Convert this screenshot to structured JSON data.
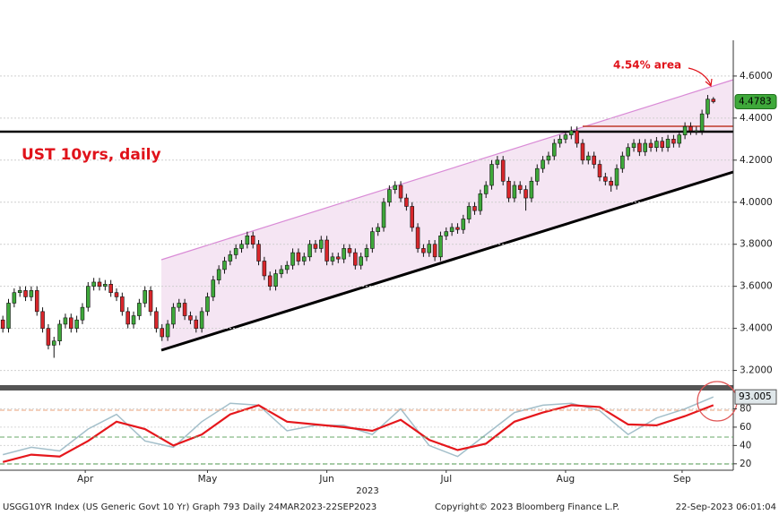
{
  "chart_data": [
    {
      "type": "candlestick",
      "title": "UST 10yrs, daily",
      "annotation": "4.54% area",
      "open": [
        3.44,
        3.4,
        3.52,
        3.57,
        3.58,
        3.55,
        3.58,
        3.48,
        3.4,
        3.32,
        3.34,
        3.42,
        3.45,
        3.4,
        3.44,
        3.5,
        3.6,
        3.62,
        3.6,
        3.61,
        3.57,
        3.55,
        3.48,
        3.42,
        3.46,
        3.52,
        3.58,
        3.48,
        3.4,
        3.36,
        3.42,
        3.5,
        3.52,
        3.46,
        3.44,
        3.4,
        3.48,
        3.55,
        3.63,
        3.68,
        3.72,
        3.75,
        3.78,
        3.8,
        3.84,
        3.8,
        3.72,
        3.65,
        3.6,
        3.66,
        3.68,
        3.7,
        3.76,
        3.72,
        3.74,
        3.8,
        3.78,
        3.82,
        3.72,
        3.74,
        3.73,
        3.78,
        3.76,
        3.7,
        3.74,
        3.78,
        3.86,
        3.88,
        4.0,
        4.06,
        4.08,
        4.02,
        3.98,
        3.88,
        3.78,
        3.76,
        3.8,
        3.74,
        3.84,
        3.86,
        3.88,
        3.87,
        3.92,
        3.98,
        3.96,
        4.04,
        4.08,
        4.18,
        4.2,
        4.1,
        4.02,
        4.08,
        4.06,
        4.02,
        4.1,
        4.16,
        4.2,
        4.22,
        4.28,
        4.3,
        4.32,
        4.34,
        4.28,
        4.2,
        4.22,
        4.18,
        4.12,
        4.1,
        4.08,
        4.16,
        4.22,
        4.26,
        4.28,
        4.24,
        4.28,
        4.26,
        4.29,
        4.26,
        4.3,
        4.28,
        4.32,
        4.36,
        4.34,
        4.34,
        4.42,
        4.49
      ],
      "high": [
        3.46,
        3.54,
        3.59,
        3.6,
        3.6,
        3.6,
        3.6,
        3.5,
        3.42,
        3.36,
        3.44,
        3.47,
        3.47,
        3.46,
        3.52,
        3.62,
        3.64,
        3.64,
        3.63,
        3.63,
        3.59,
        3.57,
        3.5,
        3.48,
        3.54,
        3.6,
        3.6,
        3.5,
        3.42,
        3.44,
        3.52,
        3.54,
        3.54,
        3.48,
        3.46,
        3.5,
        3.57,
        3.65,
        3.7,
        3.74,
        3.77,
        3.8,
        3.82,
        3.86,
        3.86,
        3.82,
        3.74,
        3.67,
        3.68,
        3.7,
        3.72,
        3.78,
        3.78,
        3.76,
        3.82,
        3.82,
        3.84,
        3.84,
        3.76,
        3.76,
        3.8,
        3.8,
        3.78,
        3.76,
        3.8,
        3.88,
        3.9,
        4.02,
        4.08,
        4.1,
        4.1,
        4.04,
        4.0,
        3.9,
        3.8,
        3.82,
        3.82,
        3.86,
        3.88,
        3.9,
        3.9,
        3.94,
        4.0,
        4.0,
        4.06,
        4.1,
        4.2,
        4.22,
        4.22,
        4.12,
        4.1,
        4.1,
        4.08,
        4.12,
        4.18,
        4.22,
        4.24,
        4.3,
        4.32,
        4.34,
        4.36,
        4.36,
        4.3,
        4.24,
        4.24,
        4.2,
        4.14,
        4.12,
        4.18,
        4.24,
        4.28,
        4.3,
        4.3,
        4.3,
        4.3,
        4.31,
        4.31,
        4.32,
        4.32,
        4.34,
        4.38,
        4.38,
        4.36,
        4.44,
        4.51,
        4.5
      ],
      "low": [
        3.38,
        3.38,
        3.5,
        3.55,
        3.53,
        3.53,
        3.46,
        3.38,
        3.3,
        3.26,
        3.32,
        3.4,
        3.38,
        3.38,
        3.42,
        3.48,
        3.58,
        3.58,
        3.58,
        3.55,
        3.53,
        3.46,
        3.4,
        3.4,
        3.44,
        3.5,
        3.46,
        3.38,
        3.34,
        3.34,
        3.4,
        3.48,
        3.44,
        3.42,
        3.38,
        3.38,
        3.46,
        3.53,
        3.61,
        3.66,
        3.7,
        3.73,
        3.76,
        3.78,
        3.78,
        3.7,
        3.63,
        3.58,
        3.58,
        3.64,
        3.66,
        3.68,
        3.7,
        3.7,
        3.72,
        3.76,
        3.76,
        3.7,
        3.7,
        3.71,
        3.71,
        3.74,
        3.68,
        3.68,
        3.72,
        3.76,
        3.84,
        3.86,
        3.98,
        4.04,
        4.0,
        3.96,
        3.86,
        3.76,
        3.74,
        3.74,
        3.72,
        3.72,
        3.82,
        3.84,
        3.85,
        3.85,
        3.9,
        3.94,
        3.94,
        4.02,
        4.06,
        4.16,
        4.08,
        4.0,
        4.0,
        4.04,
        3.96,
        4.0,
        4.08,
        4.14,
        4.18,
        4.2,
        4.26,
        4.28,
        4.3,
        4.26,
        4.18,
        4.18,
        4.16,
        4.1,
        4.08,
        4.05,
        4.06,
        4.14,
        4.2,
        4.24,
        4.22,
        4.22,
        4.24,
        4.24,
        4.24,
        4.24,
        4.26,
        4.26,
        4.3,
        4.32,
        4.32,
        4.32,
        4.4,
        4.47
      ],
      "close": [
        3.4,
        3.52,
        3.57,
        3.58,
        3.55,
        3.58,
        3.48,
        3.4,
        3.32,
        3.34,
        3.42,
        3.45,
        3.4,
        3.44,
        3.5,
        3.6,
        3.62,
        3.6,
        3.61,
        3.57,
        3.55,
        3.48,
        3.42,
        3.46,
        3.52,
        3.58,
        3.48,
        3.4,
        3.36,
        3.42,
        3.5,
        3.52,
        3.46,
        3.44,
        3.4,
        3.48,
        3.55,
        3.63,
        3.68,
        3.72,
        3.75,
        3.78,
        3.8,
        3.84,
        3.8,
        3.72,
        3.65,
        3.6,
        3.66,
        3.68,
        3.7,
        3.76,
        3.72,
        3.74,
        3.8,
        3.78,
        3.82,
        3.72,
        3.74,
        3.73,
        3.78,
        3.76,
        3.7,
        3.74,
        3.78,
        3.86,
        3.88,
        4.0,
        4.06,
        4.08,
        4.02,
        3.98,
        3.88,
        3.78,
        3.76,
        3.8,
        3.74,
        3.84,
        3.86,
        3.88,
        3.87,
        3.92,
        3.98,
        3.96,
        4.04,
        4.08,
        4.18,
        4.2,
        4.1,
        4.02,
        4.08,
        4.06,
        4.02,
        4.1,
        4.16,
        4.2,
        4.22,
        4.28,
        4.3,
        4.32,
        4.34,
        4.28,
        4.2,
        4.22,
        4.18,
        4.12,
        4.1,
        4.08,
        4.16,
        4.22,
        4.26,
        4.28,
        4.24,
        4.28,
        4.26,
        4.29,
        4.26,
        4.3,
        4.28,
        4.32,
        4.36,
        4.34,
        4.34,
        4.42,
        4.49,
        4.4783
      ],
      "up_color": "#3ea83a",
      "down_color": "#d8262b",
      "xlim": [
        -0.5,
        128.5
      ],
      "ylim": [
        3.13,
        4.77
      ],
      "yticks": [
        {
          "value": 3.2,
          "label": "3.2000"
        },
        {
          "value": 3.4,
          "label": "3.4000"
        },
        {
          "value": 3.6,
          "label": "3.6000"
        },
        {
          "value": 3.8,
          "label": "3.8000"
        },
        {
          "value": 4.0,
          "label": "4.0000"
        },
        {
          "value": 4.2,
          "label": "4.2000"
        },
        {
          "value": 4.4,
          "label": "4.4000"
        },
        {
          "value": 4.6,
          "label": "4.6000"
        }
      ],
      "grid": true
    },
    {
      "type": "line",
      "series": [
        {
          "color": "#a3bfca",
          "x": [
            0,
            5,
            10,
            15,
            20,
            25,
            30,
            35,
            40,
            45,
            50,
            55,
            60,
            65,
            70,
            75,
            80,
            85,
            90,
            95,
            100,
            105,
            110,
            115,
            120,
            125
          ],
          "values": [
            30,
            38,
            34,
            58,
            74,
            45,
            38,
            66,
            86,
            84,
            56,
            62,
            62,
            52,
            80,
            40,
            28,
            52,
            76,
            84,
            86,
            78,
            52,
            70,
            80,
            93.005
          ]
        },
        {
          "color": "#e5171c",
          "x": [
            0,
            5,
            10,
            15,
            20,
            25,
            30,
            35,
            40,
            45,
            50,
            55,
            60,
            65,
            70,
            75,
            80,
            85,
            90,
            95,
            100,
            105,
            110,
            115,
            120,
            125
          ],
          "values": [
            22,
            30,
            28,
            45,
            66,
            58,
            40,
            52,
            74,
            84,
            66,
            63,
            60,
            56,
            68,
            46,
            35,
            42,
            66,
            76,
            84,
            82,
            63,
            62,
            72,
            84
          ]
        }
      ],
      "xlim": [
        -0.5,
        128.5
      ],
      "xticks": [
        {
          "value": 14.5,
          "label": "Apr"
        },
        {
          "value": 36,
          "label": "May"
        },
        {
          "value": 57,
          "label": "Jun"
        },
        {
          "value": 78,
          "label": "Jul"
        },
        {
          "value": 99,
          "label": "Aug"
        },
        {
          "value": 119.5,
          "label": "Sep"
        }
      ],
      "xlabel": "2023",
      "ylim": [
        13,
        100
      ],
      "yticks": [
        20,
        40,
        60,
        80
      ],
      "grid": true
    }
  ],
  "footer": {
    "left": "USGG10YR Index (US Generic Govt 10 Yr) Graph 793  Daily 24MAR2023-22SEP2023",
    "center": "Copyright© 2023 Bloomberg Finance L.P.",
    "right": "22-Sep-2023 06:01:04"
  }
}
